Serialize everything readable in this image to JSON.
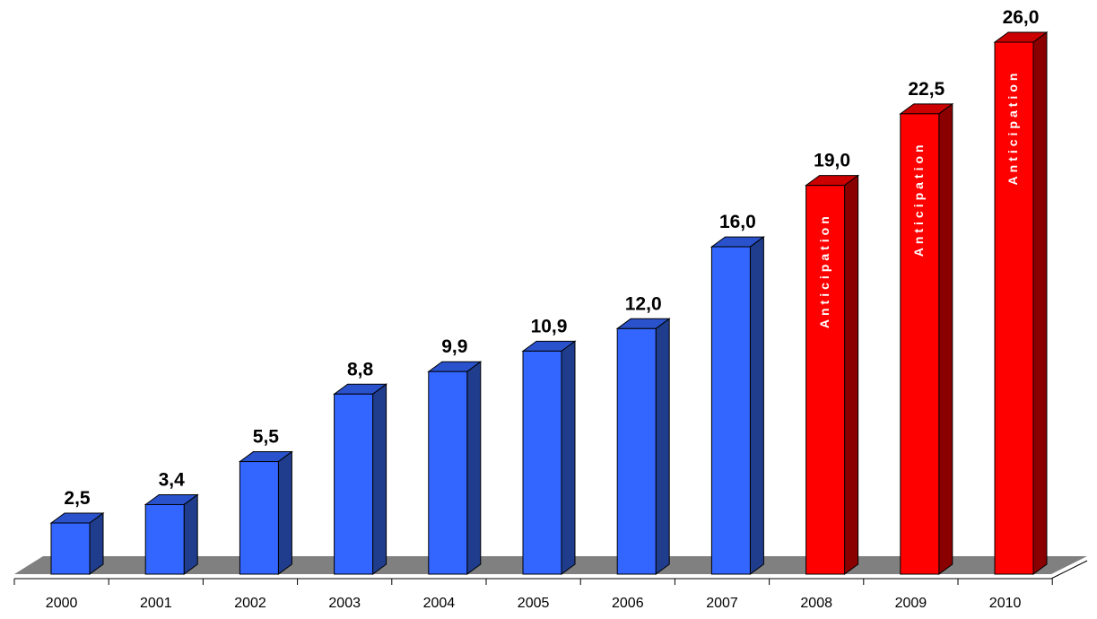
{
  "chart_data": {
    "type": "bar",
    "categories": [
      "2000",
      "2001",
      "2002",
      "2003",
      "2004",
      "2005",
      "2006",
      "2007",
      "2008",
      "2009",
      "2010"
    ],
    "values": [
      2.5,
      3.4,
      5.5,
      8.8,
      9.9,
      10.9,
      12.0,
      16.0,
      19.0,
      22.5,
      26.0
    ],
    "value_labels": [
      "2,5",
      "3,4",
      "5,5",
      "8,8",
      "9,9",
      "10,9",
      "12,0",
      "16,0",
      "19,0",
      "22,5",
      "26,0"
    ],
    "bar_annotations": [
      "",
      "",
      "",
      "",
      "",
      "",
      "",
      "",
      "Anticipation",
      "Anticipation",
      "Anticipation"
    ],
    "title": "",
    "xlabel": "",
    "ylabel": "",
    "ylim": [
      0,
      26
    ],
    "grid": false,
    "legend": "none",
    "style": "3d-column",
    "colors": {
      "actual_front": "#3366ff",
      "actual_side": "#1f3d8c",
      "actual_top": "#2a52cc",
      "forecast_front": "#ff0000",
      "forecast_side": "#8a0000",
      "forecast_top": "#cc0000",
      "floor": "#808080"
    }
  }
}
